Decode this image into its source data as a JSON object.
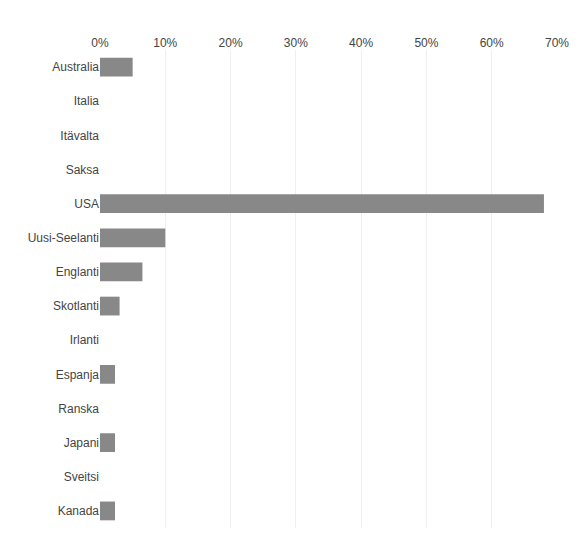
{
  "chart_data": {
    "type": "bar",
    "orientation": "horizontal",
    "categories": [
      "Kanada",
      "Sveitsi",
      "Japani",
      "Ranska",
      "Espanja",
      "Irlanti",
      "Skotlanti",
      "Englanti",
      "Uusi-Seelanti",
      "USA",
      "Saksa",
      "Itävalta",
      "Italia",
      "Australia"
    ],
    "values": [
      2.3,
      0.0,
      2.3,
      0.0,
      2.3,
      0.0,
      3.0,
      6.5,
      10.0,
      68.0,
      0.0,
      0.0,
      0.0,
      5.0
    ],
    "color": "#888888",
    "xlim": [
      0,
      70
    ],
    "xticks": [
      {
        "value": 0,
        "label": "0%"
      },
      {
        "value": 10,
        "label": "10%"
      },
      {
        "value": 20,
        "label": "20%"
      },
      {
        "value": 30,
        "label": "30%"
      },
      {
        "value": 40,
        "label": "40%"
      },
      {
        "value": 50,
        "label": "50%"
      },
      {
        "value": 60,
        "label": "60%"
      },
      {
        "value": 70,
        "label": "70%"
      }
    ],
    "grid": true
  }
}
